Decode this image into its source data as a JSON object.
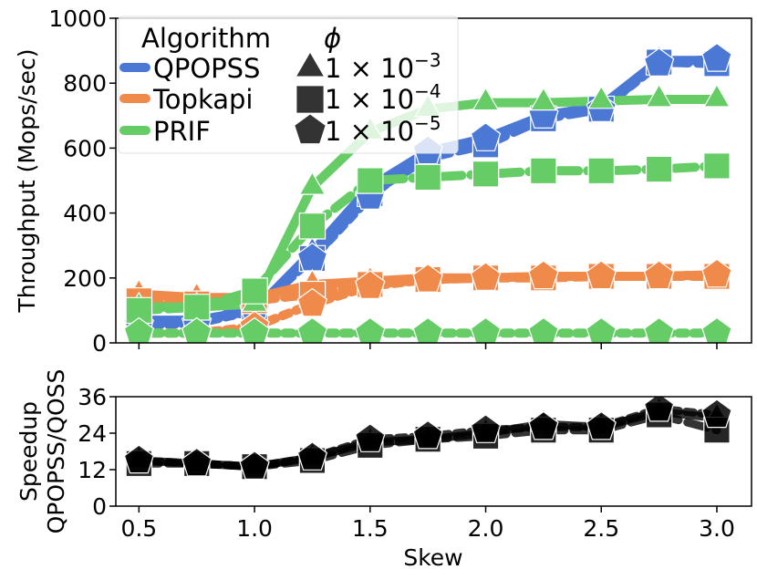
{
  "colors": {
    "QPOPSS": "#4a78d4",
    "Topkapi": "#f08a4b",
    "PRIF": "#66cc66",
    "speedup": "#000000"
  },
  "legend": {
    "title_left": "Algorithm",
    "title_right": "ϕ",
    "entries": [
      {
        "series": "QPOPSS",
        "label": "QPOPSS",
        "phi_marker": "triangle",
        "phi_base": "1 × 10",
        "phi_exp": "−3"
      },
      {
        "series": "Topkapi",
        "label": "Topkapi",
        "phi_marker": "square",
        "phi_base": "1 × 10",
        "phi_exp": "−4"
      },
      {
        "series": "PRIF",
        "label": "PRIF",
        "phi_marker": "pentagon",
        "phi_base": "1 × 10",
        "phi_exp": "−5"
      }
    ]
  },
  "chart_data": [
    {
      "type": "line",
      "ylabel": "Throughput (Mops/sec)",
      "xlabel": "",
      "xlim": [
        0.4,
        3.15
      ],
      "ylim": [
        0,
        1000
      ],
      "yticks": [
        0,
        200,
        400,
        600,
        800,
        1000
      ],
      "xticks": [
        0.5,
        1.0,
        1.5,
        2.0,
        2.5,
        3.0
      ],
      "x": [
        0.5,
        0.75,
        1.0,
        1.25,
        1.5,
        1.75,
        2.0,
        2.25,
        2.5,
        2.75,
        3.0
      ],
      "series": [
        {
          "name": "QPOPSS",
          "phi": "1e-3",
          "marker": "triangle",
          "dash": "solid",
          "values": [
            70,
            70,
            100,
            280,
            480,
            590,
            630,
            700,
            730,
            870,
            870
          ]
        },
        {
          "name": "QPOPSS",
          "phi": "1e-4",
          "marker": "square",
          "dash": "dashed",
          "values": [
            60,
            65,
            110,
            260,
            460,
            570,
            610,
            690,
            720,
            865,
            860
          ]
        },
        {
          "name": "QPOPSS",
          "phi": "1e-5",
          "marker": "pentagon",
          "dash": "dotted",
          "values": [
            55,
            60,
            100,
            260,
            450,
            590,
            630,
            700,
            720,
            860,
            875
          ]
        },
        {
          "name": "Topkapi",
          "phi": "1e-3",
          "marker": "triangle",
          "dash": "solid",
          "values": [
            150,
            140,
            140,
            180,
            190,
            200,
            200,
            205,
            205,
            205,
            210
          ]
        },
        {
          "name": "Topkapi",
          "phi": "1e-4",
          "marker": "square",
          "dash": "dashed",
          "values": [
            130,
            120,
            130,
            150,
            180,
            195,
            200,
            200,
            205,
            205,
            205
          ]
        },
        {
          "name": "Topkapi",
          "phi": "1e-5",
          "marker": "pentagon",
          "dash": "dotted",
          "values": [
            30,
            30,
            50,
            120,
            175,
            195,
            200,
            205,
            205,
            205,
            210
          ]
        },
        {
          "name": "PRIF",
          "phi": "1e-3",
          "marker": "triangle",
          "dash": "solid",
          "values": [
            110,
            110,
            120,
            480,
            650,
            720,
            740,
            740,
            745,
            750,
            750
          ]
        },
        {
          "name": "PRIF",
          "phi": "1e-4",
          "marker": "square",
          "dash": "dashed",
          "values": [
            100,
            110,
            160,
            360,
            500,
            510,
            520,
            530,
            530,
            535,
            545
          ]
        },
        {
          "name": "PRIF",
          "phi": "1e-5",
          "marker": "pentagon",
          "dash": "dotted",
          "values": [
            30,
            30,
            30,
            30,
            30,
            30,
            30,
            30,
            30,
            30,
            30
          ]
        }
      ]
    },
    {
      "type": "line",
      "ylabel": "Speedup QPOPSS/QOSS",
      "ylabel_lines": [
        "Speedup",
        "QPOPSS/QOSS"
      ],
      "xlabel": "Skew",
      "xlim": [
        0.4,
        3.15
      ],
      "ylim": [
        0,
        36
      ],
      "yticks": [
        0,
        12,
        24,
        36
      ],
      "xticks": [
        0.5,
        1.0,
        1.5,
        2.0,
        2.5,
        3.0
      ],
      "xtick_labels": [
        "0.5",
        "1.0",
        "1.5",
        "2.0",
        "2.5",
        "3.0"
      ],
      "x": [
        0.5,
        0.75,
        1.0,
        1.25,
        1.5,
        1.75,
        2.0,
        2.25,
        2.5,
        2.75,
        3.0
      ],
      "series": [
        {
          "name": "Speedup",
          "phi": "1e-3",
          "marker": "triangle",
          "dash": "solid",
          "values": [
            15,
            14,
            13,
            16,
            21,
            22,
            24,
            27,
            26,
            31,
            29
          ]
        },
        {
          "name": "Speedup",
          "phi": "1e-4",
          "marker": "square",
          "dash": "dashed",
          "values": [
            14,
            14,
            13,
            15,
            20,
            22,
            23,
            25,
            25,
            30,
            25
          ]
        },
        {
          "name": "Speedup",
          "phi": "1e-5",
          "marker": "pentagon",
          "dash": "dotted",
          "values": [
            15,
            14,
            13,
            16,
            22,
            23,
            25,
            26,
            26,
            32,
            30
          ]
        }
      ]
    }
  ]
}
